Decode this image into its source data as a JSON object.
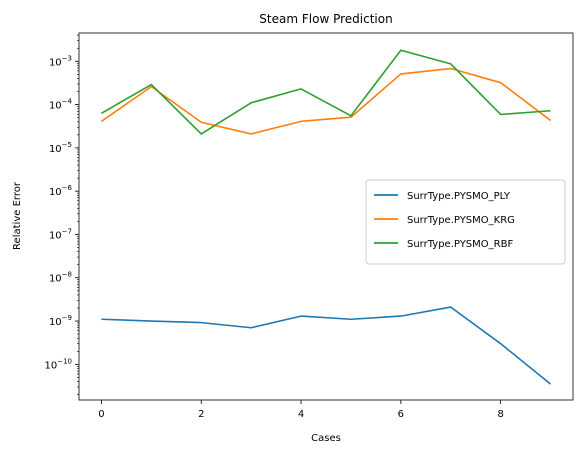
{
  "chart_data": {
    "type": "line",
    "title": "Steam Flow Prediction",
    "xlabel": "Cases",
    "ylabel": "Relative Error",
    "yscale": "log",
    "xlim": [
      -0.45,
      9.45
    ],
    "ylim": [
      1.5e-11,
      0.0045
    ],
    "x_ticks": [
      0,
      2,
      4,
      6,
      8
    ],
    "y_tick_exponents": [
      -10,
      -9,
      -8,
      -7,
      -6,
      -5,
      -4,
      -3
    ],
    "grid": false,
    "legend_position": "center-right",
    "x": [
      0,
      1,
      2,
      3,
      4,
      5,
      6,
      7,
      8,
      9
    ],
    "series": [
      {
        "name": "SurrType.PYSMO_PLY",
        "color": "#1f77b4",
        "values": [
          1.1e-09,
          1e-09,
          9.2e-10,
          7e-10,
          1.3e-09,
          1.1e-09,
          1.3e-09,
          2.1e-09,
          3e-10,
          3.5e-11
        ]
      },
      {
        "name": "SurrType.PYSMO_KRG",
        "color": "#ff7f0e",
        "values": [
          4.1e-05,
          0.00026,
          3.9e-05,
          2.1e-05,
          4.1e-05,
          5.1e-05,
          0.00051,
          0.00068,
          0.00032,
          4.3e-05
        ]
      },
      {
        "name": "SurrType.PYSMO_RBF",
        "color": "#2ca02c",
        "values": [
          6.3e-05,
          0.00029,
          2.1e-05,
          0.00011,
          0.00023,
          5.5e-05,
          0.0018,
          0.00087,
          5.9e-05,
          7.2e-05
        ]
      }
    ]
  }
}
